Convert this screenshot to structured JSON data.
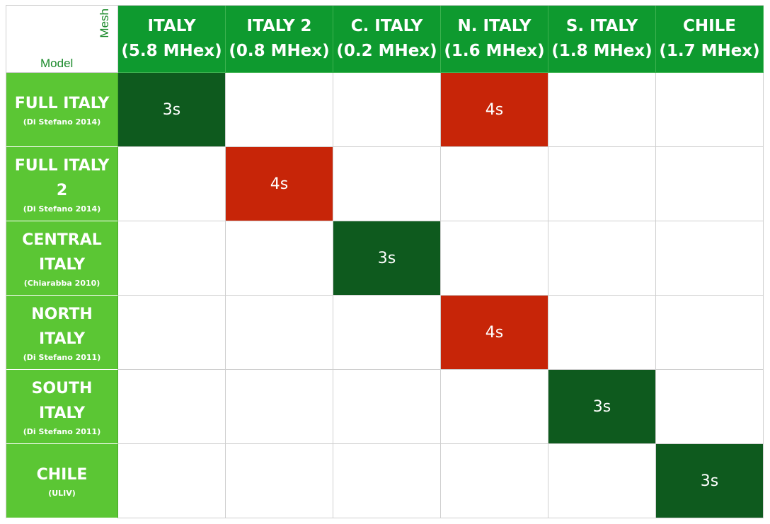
{
  "corner": {
    "mesh_label": "Mesh",
    "model_label": "Model"
  },
  "columns": [
    {
      "name": "ITALY",
      "size": "(5.8 MHex)"
    },
    {
      "name": "ITALY 2",
      "size": "(0.8 MHex)"
    },
    {
      "name": "C. ITALY",
      "size": "(0.2 MHex)"
    },
    {
      "name": "N. ITALY",
      "size": "(1.6 MHex)"
    },
    {
      "name": "S. ITALY",
      "size": "(1.8 MHex)"
    },
    {
      "name": "CHILE",
      "size": "(1.7 MHex)"
    }
  ],
  "rows": [
    {
      "name": "FULL ITALY",
      "source": "(Di Stefano 2014)"
    },
    {
      "name": "FULL ITALY 2",
      "source": "(Di Stefano 2014)"
    },
    {
      "name": "CENTRAL ITALY",
      "source": "(Chiarabba 2010)"
    },
    {
      "name": "NORTH ITALY",
      "source": "(Di Stefano 2011)"
    },
    {
      "name": "SOUTH ITALY",
      "source": "(Di Stefano 2011)"
    },
    {
      "name": "CHILE",
      "source": "(ULIV)"
    }
  ],
  "cells": [
    [
      {
        "text": "3s",
        "status": "green"
      },
      {
        "text": "",
        "status": "empty"
      },
      {
        "text": "",
        "status": "empty"
      },
      {
        "text": "4s",
        "status": "red"
      },
      {
        "text": "",
        "status": "empty"
      },
      {
        "text": "",
        "status": "empty"
      }
    ],
    [
      {
        "text": "",
        "status": "empty"
      },
      {
        "text": "4s",
        "status": "red"
      },
      {
        "text": "",
        "status": "empty"
      },
      {
        "text": "",
        "status": "empty"
      },
      {
        "text": "",
        "status": "empty"
      },
      {
        "text": "",
        "status": "empty"
      }
    ],
    [
      {
        "text": "",
        "status": "empty"
      },
      {
        "text": "",
        "status": "empty"
      },
      {
        "text": "3s",
        "status": "green"
      },
      {
        "text": "",
        "status": "empty"
      },
      {
        "text": "",
        "status": "empty"
      },
      {
        "text": "",
        "status": "empty"
      }
    ],
    [
      {
        "text": "",
        "status": "empty"
      },
      {
        "text": "",
        "status": "empty"
      },
      {
        "text": "",
        "status": "empty"
      },
      {
        "text": "4s",
        "status": "red"
      },
      {
        "text": "",
        "status": "empty"
      },
      {
        "text": "",
        "status": "empty"
      }
    ],
    [
      {
        "text": "",
        "status": "empty"
      },
      {
        "text": "",
        "status": "empty"
      },
      {
        "text": "",
        "status": "empty"
      },
      {
        "text": "",
        "status": "empty"
      },
      {
        "text": "3s",
        "status": "green"
      },
      {
        "text": "",
        "status": "empty"
      }
    ],
    [
      {
        "text": "",
        "status": "empty"
      },
      {
        "text": "",
        "status": "empty"
      },
      {
        "text": "",
        "status": "empty"
      },
      {
        "text": "",
        "status": "empty"
      },
      {
        "text": "",
        "status": "empty"
      },
      {
        "text": "3s",
        "status": "green"
      }
    ]
  ],
  "colors": {
    "header_green": "#0e9a2f",
    "row_green": "#5bc634",
    "ok_green": "#0e5a1e",
    "fail_red": "#c72508"
  }
}
